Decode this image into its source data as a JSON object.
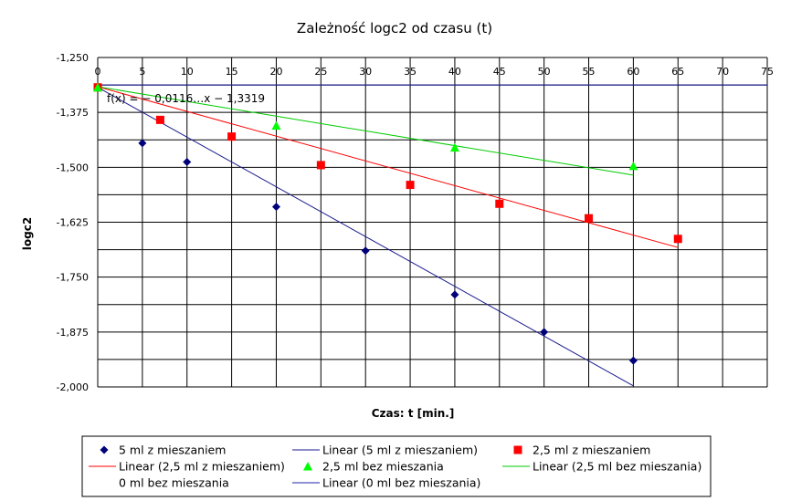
{
  "chart_data": {
    "type": "scatter",
    "title": "Zależność logc2 od czasu (t)",
    "xlabel": "Czas: t [min.]",
    "ylabel": "logc2",
    "xlim": [
      0,
      75
    ],
    "ylim": [
      -2.0,
      -1.25
    ],
    "x_major": 5,
    "y_major": 0.125,
    "y_minor": 0.0625,
    "x_ticks": [
      "0",
      "5",
      "10",
      "15",
      "20",
      "25",
      "30",
      "35",
      "40",
      "45",
      "50",
      "55",
      "60",
      "65",
      "70",
      "75"
    ],
    "y_ticks": [
      "-1,250",
      "-1,375",
      "-1,500",
      "-1,625",
      "-1,750",
      "-1,875",
      "-2,000"
    ],
    "grid": true,
    "legend_position": "bottom",
    "equation_text": "f(x) = − 0,0116…x − 1,3319",
    "series": [
      {
        "name": "5 ml z mieszaniem",
        "marker": "diamond",
        "color": "#00007a",
        "x": [
          0,
          5,
          10,
          20,
          30,
          40,
          50,
          60
        ],
        "y": [
          -1.318,
          -1.445,
          -1.488,
          -1.59,
          -1.69,
          -1.79,
          -1.875,
          -1.94
        ]
      },
      {
        "name": "2,5 ml z mieszaniem",
        "marker": "square",
        "color": "#ff0000",
        "x": [
          0,
          7,
          15,
          25,
          35,
          45,
          55,
          65
        ],
        "y": [
          -1.318,
          -1.392,
          -1.43,
          -1.495,
          -1.54,
          -1.583,
          -1.616,
          -1.663
        ]
      },
      {
        "name": "2,5 ml bez mieszania",
        "marker": "triangle",
        "color": "#00ff00",
        "x": [
          0,
          20,
          40,
          60
        ],
        "y": [
          -1.318,
          -1.405,
          -1.455,
          -1.497
        ]
      },
      {
        "name": "0 ml bez mieszania",
        "marker": "none",
        "color": "#000000",
        "x": [],
        "y": []
      }
    ],
    "trendlines": [
      {
        "name": "Linear (5 ml z mieszaniem)",
        "color": "#1a1a8c",
        "x": [
          0,
          60
        ],
        "y": [
          -1.318,
          -1.9975
        ]
      },
      {
        "name": "Linear (2,5 ml z mieszaniem)",
        "color": "#ff0000",
        "x": [
          0,
          65
        ],
        "y": [
          -1.3165,
          -1.6825
        ]
      },
      {
        "name": "Linear (2,5 ml bez mieszania)",
        "color": "#00cc00",
        "x": [
          0,
          60
        ],
        "y": [
          -1.3165,
          -1.5178
        ]
      },
      {
        "name": "Linear (0 ml bez mieszania)",
        "color": "#2222aa",
        "x": [
          0,
          75
        ],
        "y": [
          -1.3125,
          -1.3125
        ]
      }
    ]
  }
}
